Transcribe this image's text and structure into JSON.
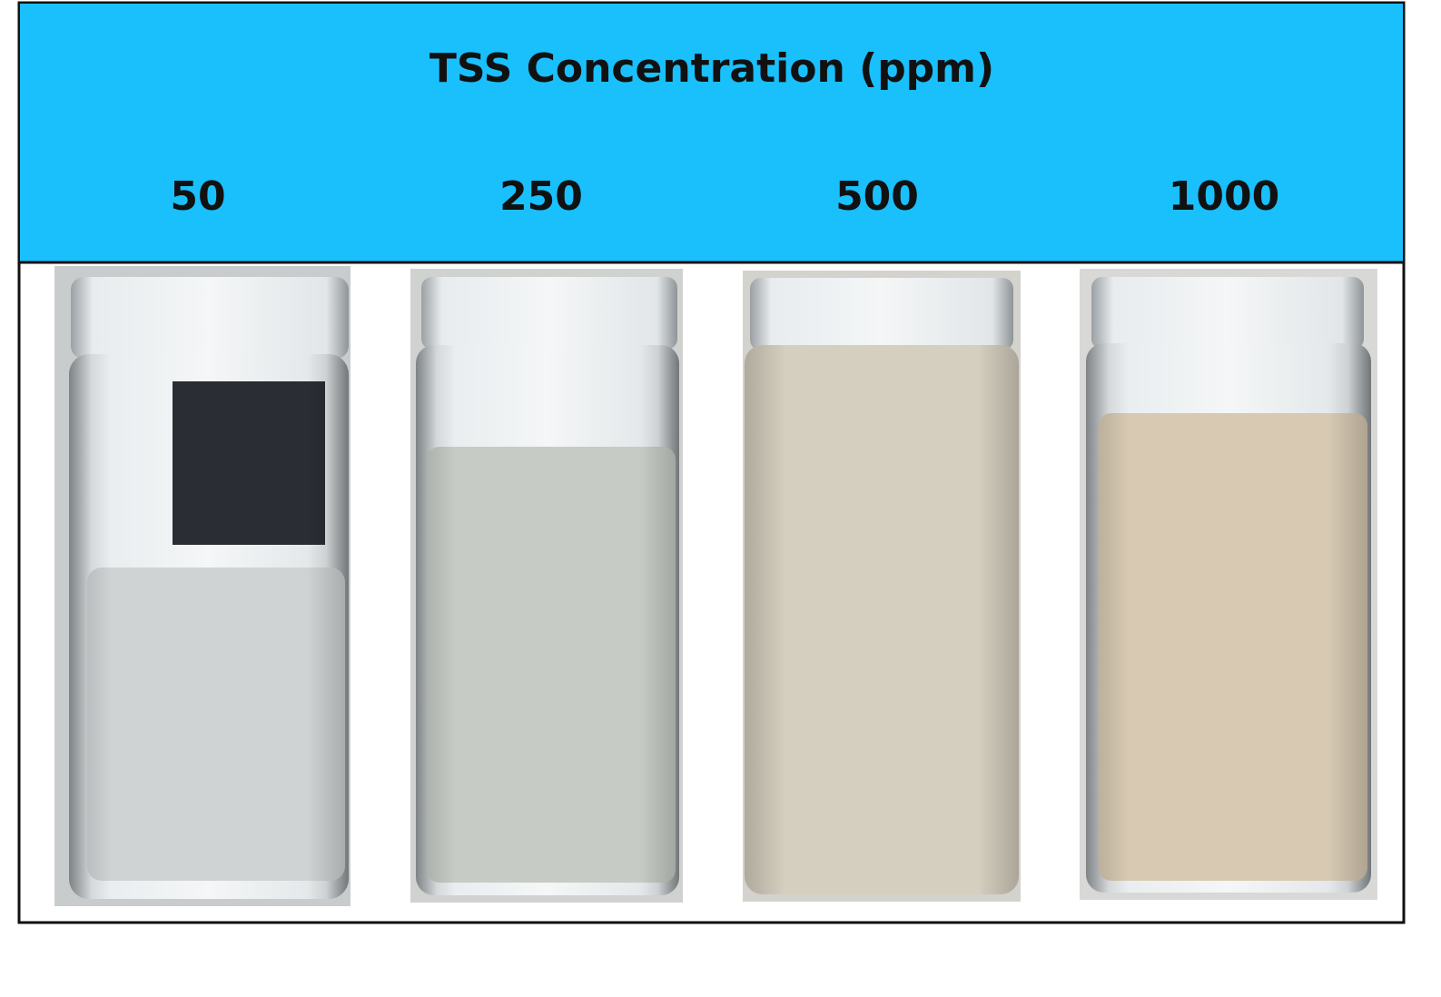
{
  "header": {
    "title": "TSS Concentration (ppm)",
    "labels": [
      "50",
      "250",
      "500",
      "1000"
    ]
  }
}
